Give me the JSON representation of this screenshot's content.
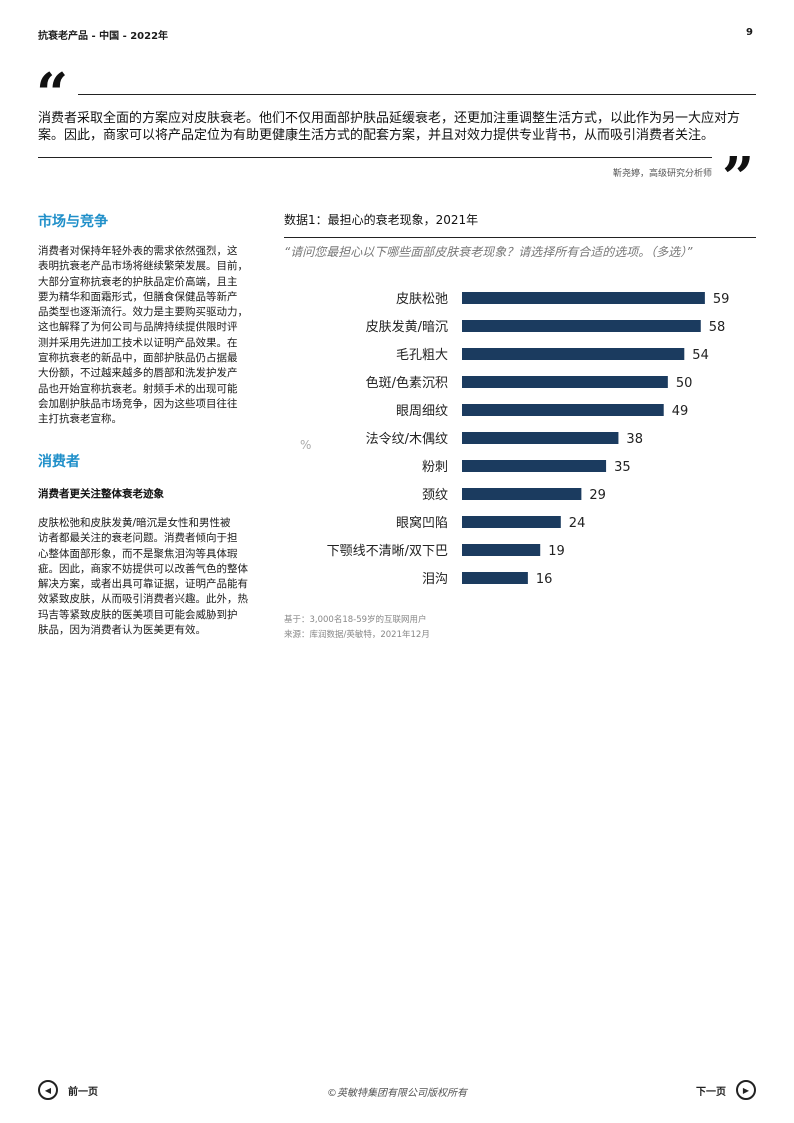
{
  "header": {
    "title": "抗衰老产品 - 中国 - 2022年",
    "page_number": "9"
  },
  "quote": {
    "text_line1": "消费者采取全面的方案应对皮肤衰老。他们不仅用面部护肤品延缓衰老，还更加注重调整生活方式，以此作为另一大应对方",
    "text_line2": "案。因此，商家可以将产品定位为有助更健康生活方式的配套方案，并且对效力提供专业背书，从而吸引消费者关注。",
    "author": "靳尧婷，高级研究分析师"
  },
  "left": {
    "section1_title": "市场与竞争",
    "section1_lines": [
      "消费者对保持年轻外表的需求依然强烈，这",
      "表明抗衰老产品市场将继续繁荣发展。目前，",
      "大部分宣称抗衰老的护肤品定价高端，且主",
      "要为精华和面霜形式，但膳食保健品等新产",
      "品类型也逐渐流行。效力是主要购买驱动力，",
      "这也解释了为何公司与品牌持续提供限时评",
      "测并采用先进加工技术以证明产品效果。在",
      "宣称抗衰老的新品中，面部护肤品仍占据最",
      "大份额，不过越来越多的唇部和洗发护发产",
      "品也开始宣称抗衰老。射频手术的出现可能",
      "会加剧护肤品市场竞争，因为这些项目往往",
      "主打抗衰老宣称。"
    ],
    "section2_title": "消费者",
    "subsection_title": "消费者更关注整体衰老迹象",
    "section2_lines": [
      "皮肤松弛和皮肤发黄/暗沉是女性和男性被",
      "访者都最关注的衰老问题。消费者倾向于担",
      "心整体面部形象，而不是聚焦泪沟等具体瑕",
      "疵。因此，商家不妨提供可以改善气色的整体",
      "解决方案，或者出具可靠证据，证明产品能有",
      "效紧致皮肤，从而吸引消费者兴趣。此外，热",
      "玛吉等紧致皮肤的医美项目可能会威胁到护",
      "肤品，因为消费者认为医美更有效。"
    ]
  },
  "chart": {
    "title": "数据1：最担心的衰老现象，2021年",
    "question": "“请问您最担心以下哪些面部皮肤衰老现象？请选择所有合适的选项。（多选）”",
    "unit": "%",
    "note_base": "基于：3,000名18-59岁的互联网用户",
    "note_source": "来源：库润数据/英敏特，2021年12月",
    "bar_color": "#1b3b5f"
  },
  "chart_data": {
    "type": "bar",
    "orientation": "horizontal",
    "categories": [
      "皮肤松弛",
      "皮肤发黄/暗沉",
      "毛孔粗大",
      "色斑/色素沉积",
      "眼周细纹",
      "法令纹/木偶纹",
      "粉刺",
      "颈纹",
      "眼窝凹陷",
      "下颚线不清晰/双下巴",
      "泪沟"
    ],
    "values": [
      59,
      58,
      54,
      50,
      49,
      38,
      35,
      29,
      24,
      19,
      16
    ],
    "title": "数据1：最担心的衰老现象，2021年",
    "xlim": [
      0,
      60
    ],
    "grid": false
  },
  "footer": {
    "prev_label": "前一页",
    "next_label": "下一页",
    "copyright": "©英敏特集团有限公司版权所有",
    "prev_icon": "triangle-left-icon",
    "next_icon": "triangle-right-icon"
  }
}
